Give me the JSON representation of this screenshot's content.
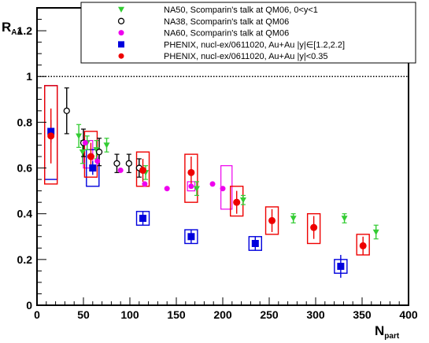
{
  "chart_data": {
    "type": "scatter",
    "xlabel_main": "N",
    "xlabel_sub": "part",
    "ylabel_main": "R",
    "ylabel_sub": "AA",
    "xlim": [
      0,
      400
    ],
    "ylim": [
      0,
      1.3
    ],
    "x_ticks": [
      "0",
      "50",
      "100",
      "150",
      "200",
      "250",
      "300",
      "350",
      "400"
    ],
    "y_ticks": [
      "0",
      "0.2",
      "0.4",
      "0.6",
      "0.8",
      "1",
      "1.2"
    ],
    "reference_line": 1.0,
    "legend_position": "top-right",
    "series": [
      {
        "name": "NA50, Scomparin's talk at QM06, 0<y<1",
        "marker": "triangle-down",
        "color": "#33cc33",
        "points": [
          {
            "x": 45,
            "y": 0.74,
            "err": 0.05
          },
          {
            "x": 49,
            "y": 0.67,
            "err": 0.05
          },
          {
            "x": 54,
            "y": 0.71,
            "err": 0.03
          },
          {
            "x": 64,
            "y": 0.68,
            "err": 0.04
          },
          {
            "x": 75,
            "y": 0.7,
            "err": 0.03
          },
          {
            "x": 117,
            "y": 0.58,
            "err": 0.03
          },
          {
            "x": 172,
            "y": 0.51,
            "err": 0.03
          },
          {
            "x": 222,
            "y": 0.46,
            "err": 0.02
          },
          {
            "x": 276,
            "y": 0.38,
            "err": 0.02
          },
          {
            "x": 331,
            "y": 0.38,
            "err": 0.02
          },
          {
            "x": 365,
            "y": 0.32,
            "err": 0.03
          }
        ]
      },
      {
        "name": "NA38, Scomparin's talk at QM06",
        "marker": "open-circle",
        "color": "#000000",
        "points": [
          {
            "x": 32,
            "y": 0.85,
            "err": 0.1
          },
          {
            "x": 50,
            "y": 0.71,
            "err": 0.06
          },
          {
            "x": 67,
            "y": 0.67,
            "err": 0.06
          },
          {
            "x": 86,
            "y": 0.62,
            "err": 0.04
          },
          {
            "x": 99,
            "y": 0.62,
            "err": 0.04
          },
          {
            "x": 110,
            "y": 0.6,
            "err": 0.04
          }
        ]
      },
      {
        "name": "NA60, Scomparin's talk at QM06",
        "marker": "filled-circle",
        "color": "#ee00ee",
        "points": [
          {
            "x": 52,
            "y": 0.71,
            "err": 0.01
          },
          {
            "x": 65,
            "y": 0.63,
            "err": 0.02
          },
          {
            "x": 90,
            "y": 0.59,
            "err": 0.01
          },
          {
            "x": 116,
            "y": 0.53,
            "err": 0.01
          },
          {
            "x": 140,
            "y": 0.51,
            "err": 0.01
          },
          {
            "x": 166,
            "y": 0.52,
            "err": 0.01
          },
          {
            "x": 189,
            "y": 0.53,
            "err": 0.01
          },
          {
            "x": 200,
            "y": 0.51,
            "err": 0.01
          }
        ],
        "boxes": [
          {
            "x": 55,
            "y": 0.65,
            "half_x": 5,
            "lo": 0.6,
            "hi": 0.72
          },
          {
            "x": 166,
            "y": 0.52,
            "half_x": 4,
            "lo": 0.5,
            "hi": 0.54
          },
          {
            "x": 204,
            "y": 0.51,
            "half_x": 6,
            "lo": 0.42,
            "hi": 0.61
          }
        ]
      },
      {
        "name": "PHENIX, nucl-ex/0611020, Au+Au |y|∈[1.2,2.2]",
        "marker": "filled-square",
        "color": "#0000dd",
        "points": [
          {
            "x": 15,
            "y": 0.76,
            "err": 0.05,
            "lo": 0.55,
            "hi": 0.96
          },
          {
            "x": 60,
            "y": 0.6,
            "err": 0.03,
            "lo": 0.52,
            "hi": 0.68
          },
          {
            "x": 114,
            "y": 0.38,
            "err": 0.03,
            "lo": 0.35,
            "hi": 0.41
          },
          {
            "x": 166,
            "y": 0.3,
            "err": 0.03,
            "lo": 0.27,
            "hi": 0.33
          },
          {
            "x": 235,
            "y": 0.27,
            "err": 0.03,
            "lo": 0.24,
            "hi": 0.3
          },
          {
            "x": 327,
            "y": 0.17,
            "err": 0.05,
            "lo": 0.14,
            "hi": 0.2
          }
        ]
      },
      {
        "name": "PHENIX, nucl-ex/0611020, Au+Au |y|<0.35",
        "marker": "filled-circle",
        "color": "#ee0000",
        "points": [
          {
            "x": 15,
            "y": 0.74,
            "err": 0.12,
            "lo": 0.53,
            "hi": 0.96
          },
          {
            "x": 58,
            "y": 0.65,
            "err": 0.06,
            "lo": 0.56,
            "hi": 0.76
          },
          {
            "x": 114,
            "y": 0.59,
            "err": 0.05,
            "lo": 0.52,
            "hi": 0.67
          },
          {
            "x": 166,
            "y": 0.58,
            "err": 0.07,
            "lo": 0.45,
            "hi": 0.66
          },
          {
            "x": 215,
            "y": 0.45,
            "err": 0.05,
            "lo": 0.39,
            "hi": 0.52
          },
          {
            "x": 253,
            "y": 0.37,
            "err": 0.05,
            "lo": 0.31,
            "hi": 0.43
          },
          {
            "x": 298,
            "y": 0.34,
            "err": 0.05,
            "lo": 0.27,
            "hi": 0.4
          },
          {
            "x": 351,
            "y": 0.26,
            "err": 0.04,
            "lo": 0.22,
            "hi": 0.31
          }
        ]
      }
    ]
  }
}
